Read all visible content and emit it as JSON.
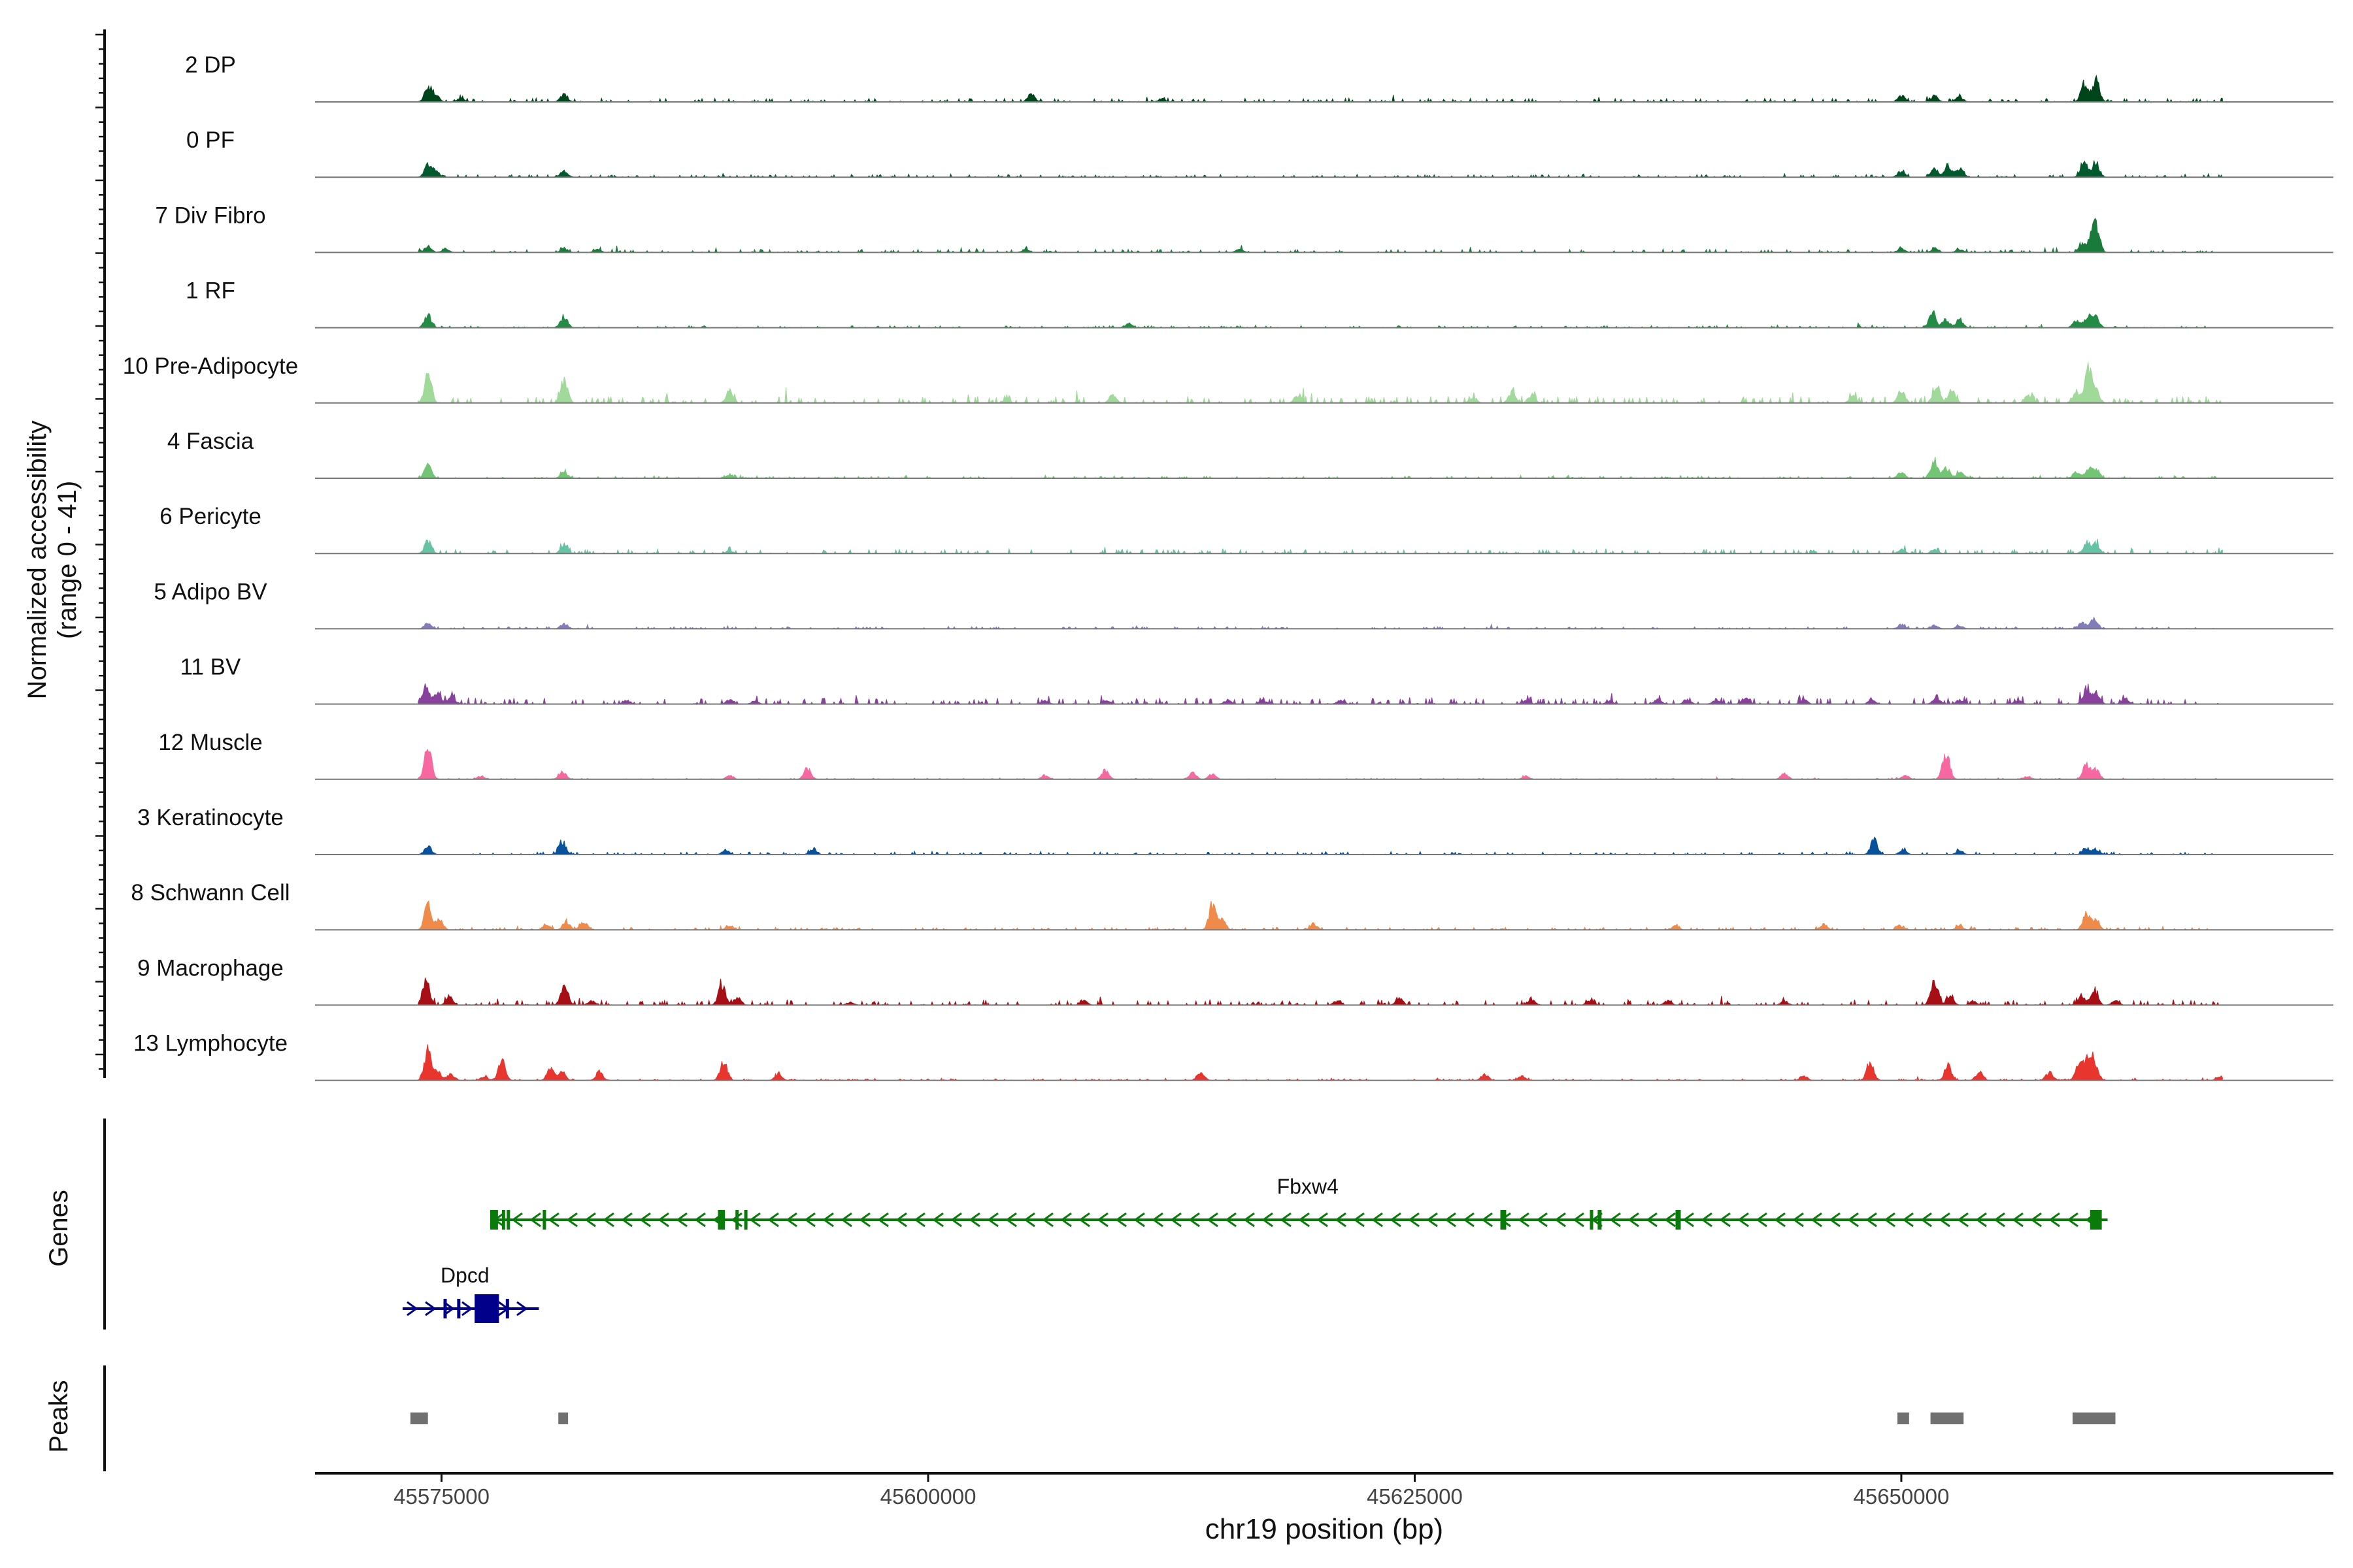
{
  "chart_data": {
    "type": "area",
    "subtype": "genome-browser-coverage",
    "chromosome": "chr19",
    "xlabel": "chr19 position (bp)",
    "ylabel_line1": "Normalized accessibility",
    "ylabel_line2": "(range 0 - 41)",
    "ylim": [
      0,
      41
    ],
    "xlim": [
      45568500,
      45672200
    ],
    "x_ticks": [
      {
        "value": 45575000,
        "label": "45575000"
      },
      {
        "value": 45600000,
        "label": "45600000"
      },
      {
        "value": 45625000,
        "label": "45625000"
      },
      {
        "value": 45650000,
        "label": "45650000"
      }
    ],
    "tracks": [
      {
        "name": "2 DP",
        "color": "#00441b",
        "noise": 0.7,
        "peaks": [
          [
            45574300,
            7
          ],
          [
            45574700,
            3
          ],
          [
            45576000,
            2
          ],
          [
            45581300,
            4
          ],
          [
            45605300,
            4
          ],
          [
            45612000,
            1.5
          ],
          [
            45650000,
            3
          ],
          [
            45651700,
            3
          ],
          [
            45653000,
            2.5
          ],
          [
            45659400,
            8
          ],
          [
            45660000,
            11
          ]
        ]
      },
      {
        "name": "0 PF",
        "color": "#005a2e",
        "noise": 0.5,
        "peaks": [
          [
            45574300,
            6
          ],
          [
            45574700,
            3
          ],
          [
            45581300,
            3.5
          ],
          [
            45650000,
            3
          ],
          [
            45651700,
            4
          ],
          [
            45652400,
            5
          ],
          [
            45653000,
            4.5
          ],
          [
            45659400,
            8
          ],
          [
            45660000,
            7
          ]
        ]
      },
      {
        "name": "7 Div Fibro",
        "color": "#1a7a3c",
        "noise": 0.6,
        "peaks": [
          [
            45574300,
            3
          ],
          [
            45575200,
            2
          ],
          [
            45581300,
            2
          ],
          [
            45583000,
            1.5
          ],
          [
            45605000,
            1.5
          ],
          [
            45616000,
            2
          ],
          [
            45650000,
            2
          ],
          [
            45651700,
            2
          ],
          [
            45653000,
            1.5
          ],
          [
            45659300,
            4
          ],
          [
            45659800,
            7
          ],
          [
            45660000,
            11
          ]
        ]
      },
      {
        "name": "1 RF",
        "color": "#238b45",
        "noise": 0.4,
        "peaks": [
          [
            45574300,
            6
          ],
          [
            45581300,
            5
          ],
          [
            45610300,
            2
          ],
          [
            45651600,
            7
          ],
          [
            45652300,
            4
          ],
          [
            45653000,
            4
          ],
          [
            45659000,
            3.5
          ],
          [
            45659600,
            6
          ],
          [
            45660000,
            5
          ]
        ]
      },
      {
        "name": "10 Pre-Adipocyte",
        "color": "#a1d99b",
        "noise": 1.3,
        "peaks": [
          [
            45574300,
            15
          ],
          [
            45581300,
            11
          ],
          [
            45589800,
            6
          ],
          [
            45604000,
            2
          ],
          [
            45609500,
            4
          ],
          [
            45619000,
            4
          ],
          [
            45628000,
            3
          ],
          [
            45630000,
            5
          ],
          [
            45631000,
            3.5
          ],
          [
            45647500,
            3
          ],
          [
            45650000,
            6
          ],
          [
            45651800,
            9
          ],
          [
            45652600,
            6
          ],
          [
            45656500,
            4
          ],
          [
            45659000,
            5
          ],
          [
            45659600,
            16
          ],
          [
            45660000,
            6
          ]
        ]
      },
      {
        "name": "4 Fascia",
        "color": "#74c476",
        "noise": 0.4,
        "peaks": [
          [
            45574300,
            6
          ],
          [
            45581300,
            3
          ],
          [
            45589800,
            2
          ],
          [
            45650000,
            3
          ],
          [
            45651700,
            9
          ],
          [
            45652300,
            5
          ],
          [
            45653000,
            3
          ],
          [
            45659000,
            3
          ],
          [
            45659600,
            4
          ],
          [
            45660000,
            4.5
          ]
        ]
      },
      {
        "name": "6 Pericyte",
        "color": "#66c2a4",
        "noise": 0.8,
        "peaks": [
          [
            45574300,
            6
          ],
          [
            45581300,
            4
          ],
          [
            45589800,
            1.5
          ],
          [
            45650000,
            2
          ],
          [
            45651700,
            2
          ],
          [
            45659500,
            4.5
          ],
          [
            45660000,
            5
          ]
        ]
      },
      {
        "name": "5 Adipo BV",
        "color": "#807dba",
        "noise": 0.4,
        "peaks": [
          [
            45574300,
            3
          ],
          [
            45581300,
            2.5
          ],
          [
            45650000,
            2
          ],
          [
            45651700,
            2
          ],
          [
            45653000,
            1.5
          ],
          [
            45659300,
            3
          ],
          [
            45659900,
            4.5
          ]
        ]
      },
      {
        "name": "11 BV",
        "color": "#88419d",
        "noise": 1.2,
        "peaks": [
          [
            45574200,
            8
          ],
          [
            45574800,
            5
          ],
          [
            45575500,
            4
          ],
          [
            45584500,
            2
          ],
          [
            45589800,
            2
          ],
          [
            45591100,
            1.5
          ],
          [
            45606000,
            1.5
          ],
          [
            45609200,
            2
          ],
          [
            45615400,
            2
          ],
          [
            45617200,
            2
          ],
          [
            45621200,
            2
          ],
          [
            45630700,
            2
          ],
          [
            45635000,
            1.5
          ],
          [
            45637500,
            2.5
          ],
          [
            45639000,
            2
          ],
          [
            45640500,
            2
          ],
          [
            45642000,
            3
          ],
          [
            45645000,
            2
          ],
          [
            45648500,
            2
          ],
          [
            45651800,
            3
          ],
          [
            45653000,
            2
          ],
          [
            45656000,
            2
          ],
          [
            45659500,
            7
          ],
          [
            45660000,
            6
          ],
          [
            45661500,
            3
          ],
          [
            45667300,
            1.5
          ]
        ]
      },
      {
        "name": "12 Muscle",
        "color": "#f768a1",
        "noise": 0.2,
        "peaks": [
          [
            45574300,
            15
          ],
          [
            45577000,
            1.5
          ],
          [
            45581200,
            4
          ],
          [
            45589800,
            2
          ],
          [
            45593800,
            5
          ],
          [
            45606000,
            2
          ],
          [
            45609100,
            4.5
          ],
          [
            45613600,
            3
          ],
          [
            45614600,
            2.5
          ],
          [
            45630700,
            1.5
          ],
          [
            45644000,
            3
          ],
          [
            45650200,
            2
          ],
          [
            45652300,
            13
          ],
          [
            45656500,
            1.5
          ],
          [
            45659500,
            7
          ],
          [
            45660000,
            5
          ]
        ]
      },
      {
        "name": "3 Keratinocyte",
        "color": "#08519c",
        "noise": 0.5,
        "peaks": [
          [
            45574300,
            4
          ],
          [
            45581200,
            6.5
          ],
          [
            45589600,
            2
          ],
          [
            45594100,
            3
          ],
          [
            45648600,
            7
          ],
          [
            45650100,
            2.5
          ],
          [
            45653000,
            2
          ],
          [
            45659500,
            3
          ],
          [
            45660000,
            2.5
          ]
        ]
      },
      {
        "name": "8 Schwann Cell",
        "color": "#f08a4b",
        "noise": 0.5,
        "peaks": [
          [
            45574300,
            12
          ],
          [
            45574900,
            5
          ],
          [
            45580400,
            3
          ],
          [
            45581400,
            4
          ],
          [
            45582300,
            4
          ],
          [
            45589800,
            2
          ],
          [
            45614600,
            12
          ],
          [
            45615100,
            5
          ],
          [
            45619800,
            3
          ],
          [
            45638400,
            2
          ],
          [
            45646000,
            3
          ],
          [
            45650000,
            2
          ],
          [
            45653000,
            2
          ],
          [
            45659500,
            8
          ],
          [
            45660000,
            5
          ]
        ]
      },
      {
        "name": "9 Macrophage",
        "color": "#a50f15",
        "noise": 0.9,
        "peaks": [
          [
            45574200,
            12
          ],
          [
            45575400,
            4
          ],
          [
            45581300,
            9
          ],
          [
            45582700,
            2
          ],
          [
            45589400,
            10
          ],
          [
            45590200,
            4
          ],
          [
            45596000,
            1.5
          ],
          [
            45608000,
            2
          ],
          [
            45621000,
            2
          ],
          [
            45624200,
            3.5
          ],
          [
            45631000,
            2.5
          ],
          [
            45634000,
            2
          ],
          [
            45638000,
            2
          ],
          [
            45644000,
            2
          ],
          [
            45651700,
            13
          ],
          [
            45652500,
            4
          ],
          [
            45653700,
            2
          ],
          [
            45659200,
            4
          ],
          [
            45659900,
            8
          ],
          [
            45661000,
            2
          ]
        ]
      },
      {
        "name": "13 Lymphocyte",
        "color": "#e8352e",
        "noise": 0.3,
        "peaks": [
          [
            45574300,
            15
          ],
          [
            45574800,
            4
          ],
          [
            45575500,
            3
          ],
          [
            45577200,
            2
          ],
          [
            45578100,
            9
          ],
          [
            45580600,
            6
          ],
          [
            45581200,
            4
          ],
          [
            45583100,
            4
          ],
          [
            45589500,
            9
          ],
          [
            45592300,
            3
          ],
          [
            45614000,
            4
          ],
          [
            45628600,
            3
          ],
          [
            45630500,
            2
          ],
          [
            45645000,
            2
          ],
          [
            45648400,
            9
          ],
          [
            45652400,
            7
          ],
          [
            45654000,
            4
          ],
          [
            45657600,
            4
          ],
          [
            45659100,
            6
          ],
          [
            45659500,
            9
          ],
          [
            45659900,
            11
          ],
          [
            45666400,
            2
          ]
        ]
      }
    ],
    "genes": [
      {
        "name": "Fbxw4",
        "strand": "-",
        "color": "#0a7a0a",
        "start": 45577500,
        "end": 45660600,
        "exons": [
          [
            45577500,
            45577900
          ],
          [
            45578100,
            45578250
          ],
          [
            45578350,
            45578450
          ],
          [
            45580200,
            45580260
          ],
          [
            45589200,
            45589560
          ],
          [
            45590100,
            45590160
          ],
          [
            45590550,
            45590700
          ],
          [
            45629400,
            45629700
          ],
          [
            45634000,
            45634070
          ],
          [
            45634400,
            45634600
          ],
          [
            45638400,
            45638460
          ],
          [
            45638500,
            45638580
          ],
          [
            45659700,
            45660300
          ]
        ]
      },
      {
        "name": "Dpcd",
        "strand": "+",
        "color": "#00008b",
        "start": 45573000,
        "end": 45580000,
        "exons": [
          [
            45575100,
            45575200
          ],
          [
            45575800,
            45575950
          ],
          [
            45576700,
            45577950
          ],
          [
            45578300,
            45578380
          ]
        ]
      }
    ],
    "peaks_track": [
      [
        45573400,
        45574300
      ],
      [
        45581000,
        45581500
      ],
      [
        45649800,
        45650400
      ],
      [
        45651500,
        45653200
      ],
      [
        45658800,
        45661000
      ]
    ],
    "panel_labels": {
      "genes": "Genes",
      "peaks": "Peaks"
    }
  }
}
